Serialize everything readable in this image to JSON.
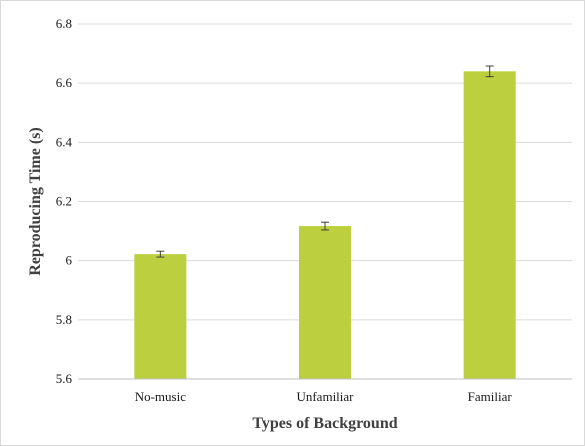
{
  "chart_data": {
    "type": "bar",
    "title": "",
    "xlabel": "Types of Background",
    "ylabel": "Reproducing Time (s)",
    "categories": [
      "No-music",
      "Unfamiliar",
      "Familiar"
    ],
    "values": [
      6.022,
      6.117,
      6.64
    ],
    "error": [
      0.01,
      0.013,
      0.018
    ],
    "ylim": [
      5.6,
      6.8
    ],
    "yticks": [
      5.6,
      5.8,
      6,
      6.2,
      6.4,
      6.6,
      6.8
    ],
    "ytick_labels": [
      "5.6",
      "5.8",
      "6",
      "6.2",
      "6.4",
      "6.6",
      "6.8"
    ],
    "grid": true,
    "legend": "none",
    "bar_color": "#bccf3f"
  }
}
